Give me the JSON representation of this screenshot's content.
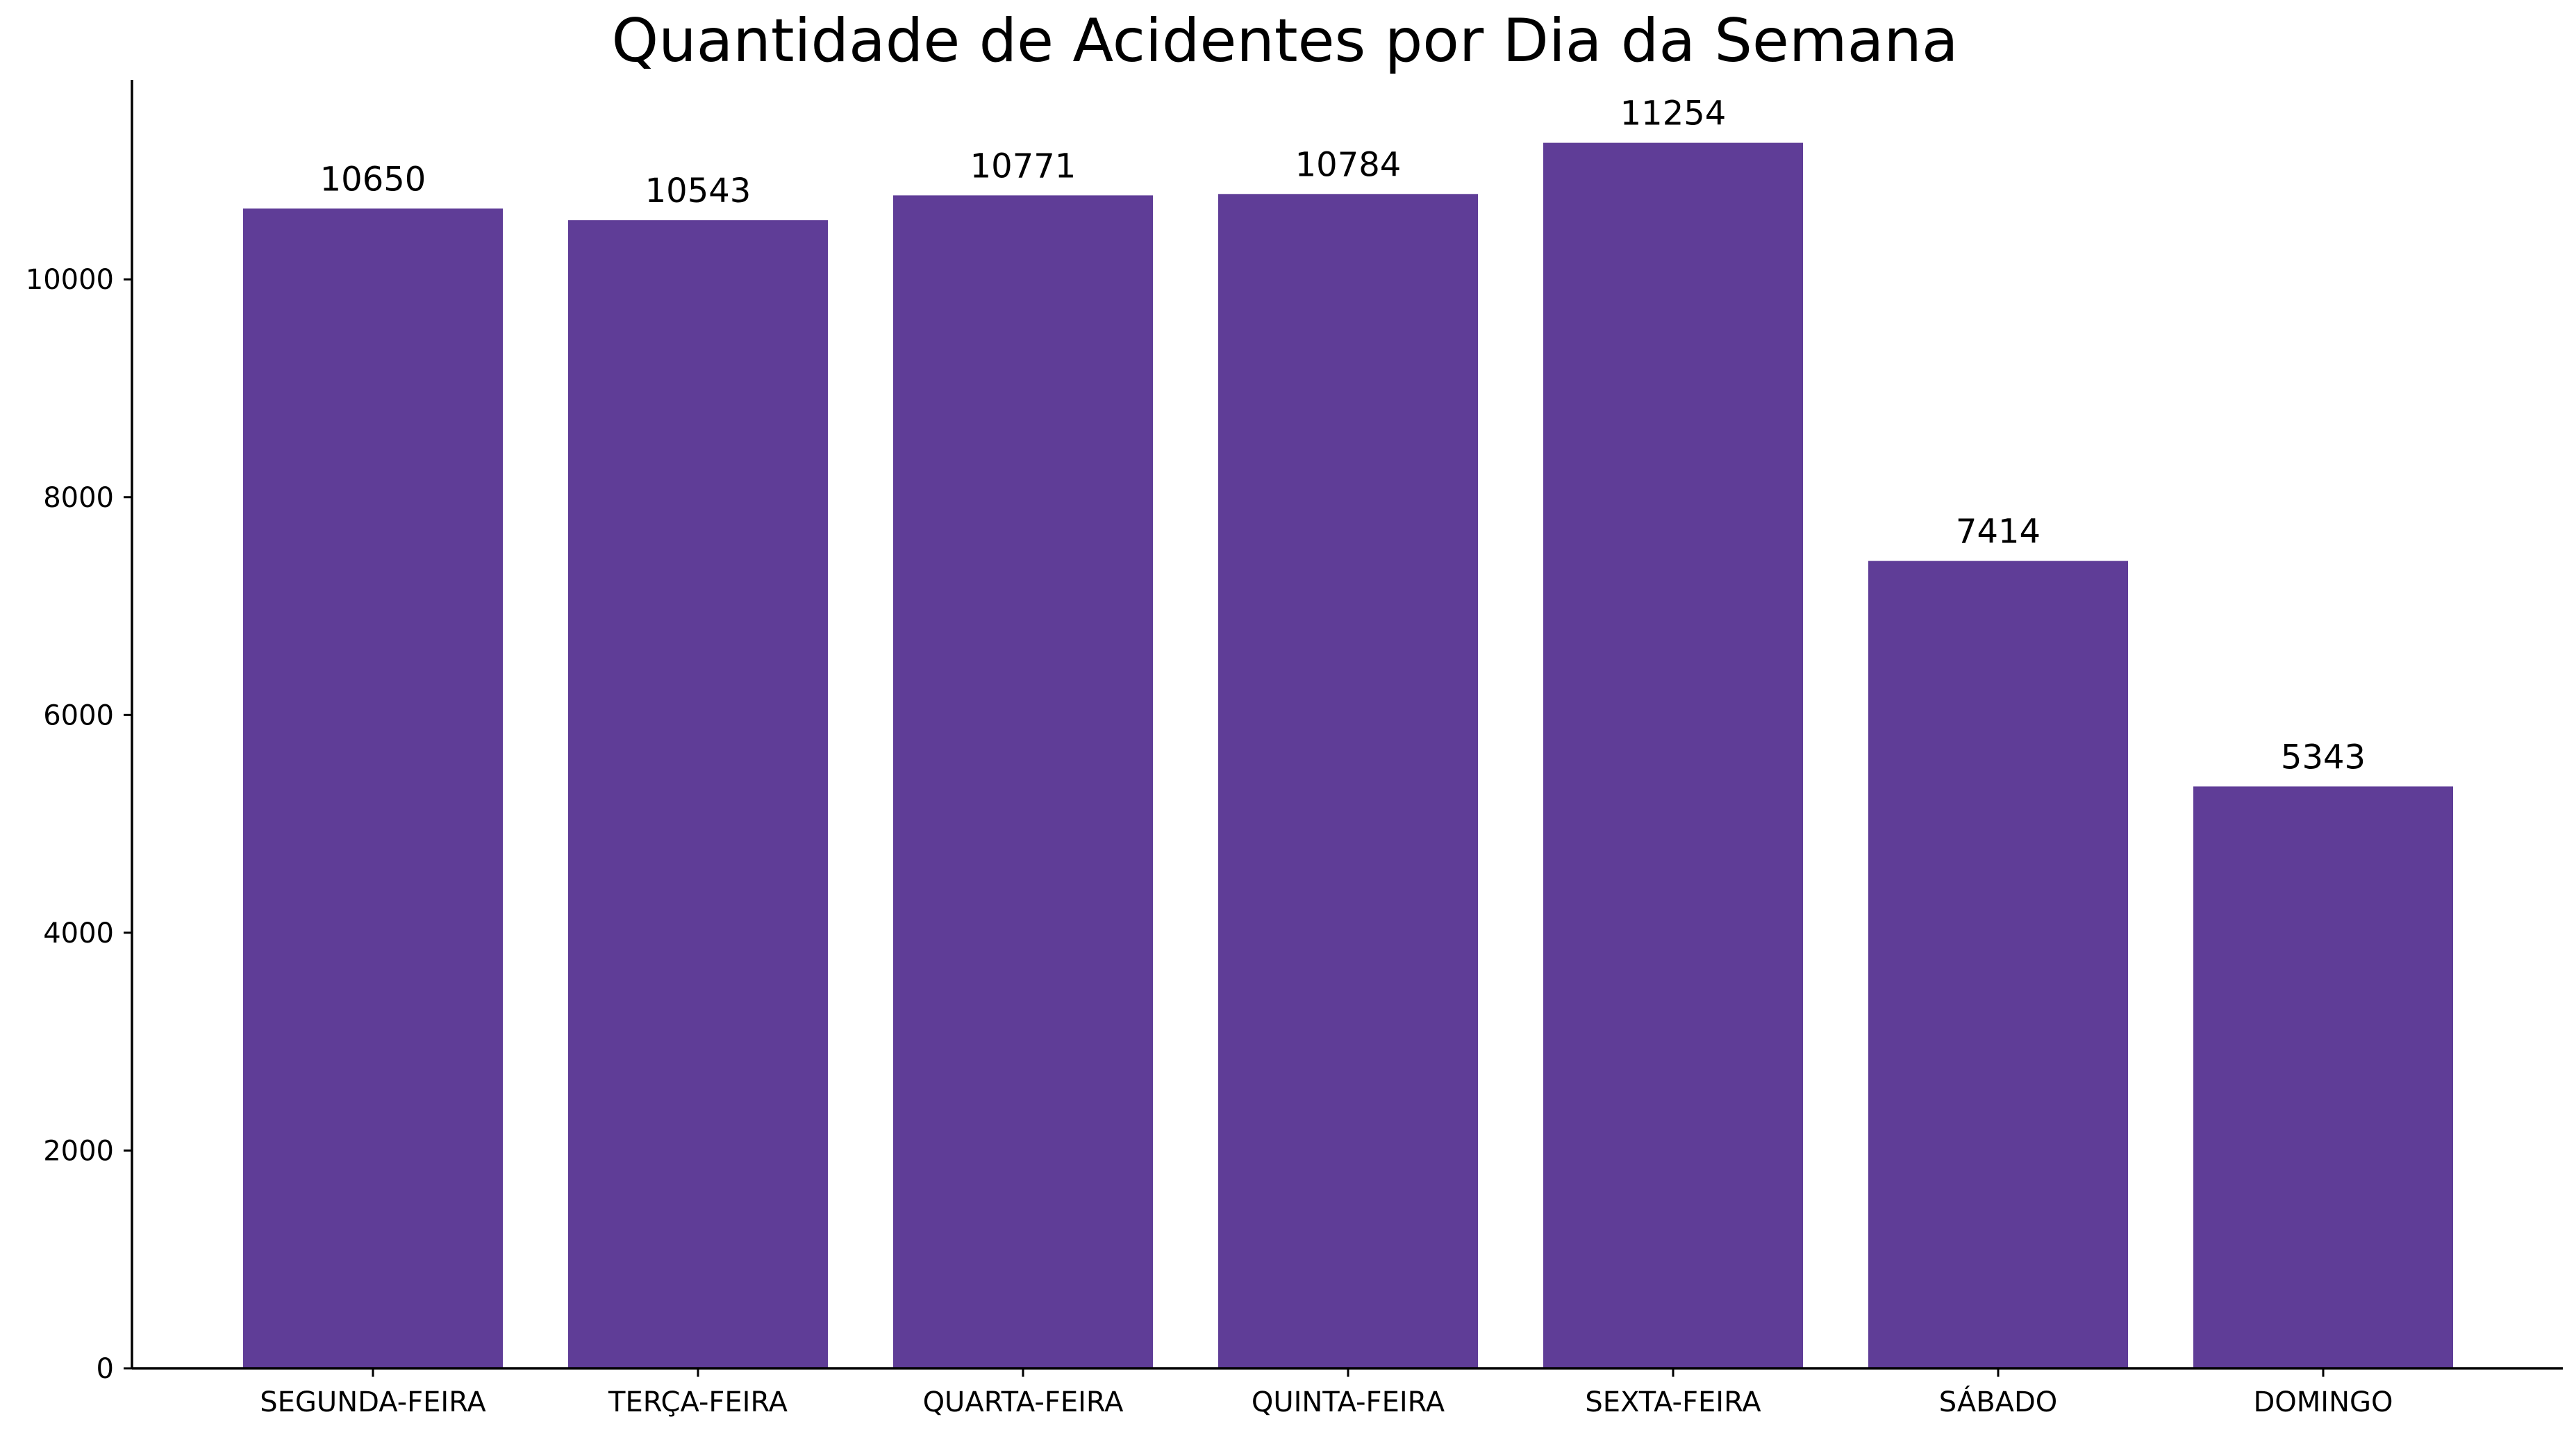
{
  "chart_data": {
    "type": "bar",
    "title": "Quantidade de Acidentes por Dia da Semana",
    "xlabel": "",
    "ylabel": "",
    "categories": [
      "SEGUNDA-FEIRA",
      "TERÇA-FEIRA",
      "QUARTA-FEIRA",
      "QUINTA-FEIRA",
      "SEXTA-FEIRA",
      "SÁBADO",
      "DOMINGO"
    ],
    "values": [
      10650,
      10543,
      10771,
      10784,
      11254,
      7414,
      5343
    ],
    "ylim": [
      0,
      11800
    ],
    "yticks": [
      0,
      2000,
      4000,
      6000,
      8000,
      10000
    ],
    "bar_color": "#5f3d97",
    "grid": false,
    "data_labels": true
  }
}
